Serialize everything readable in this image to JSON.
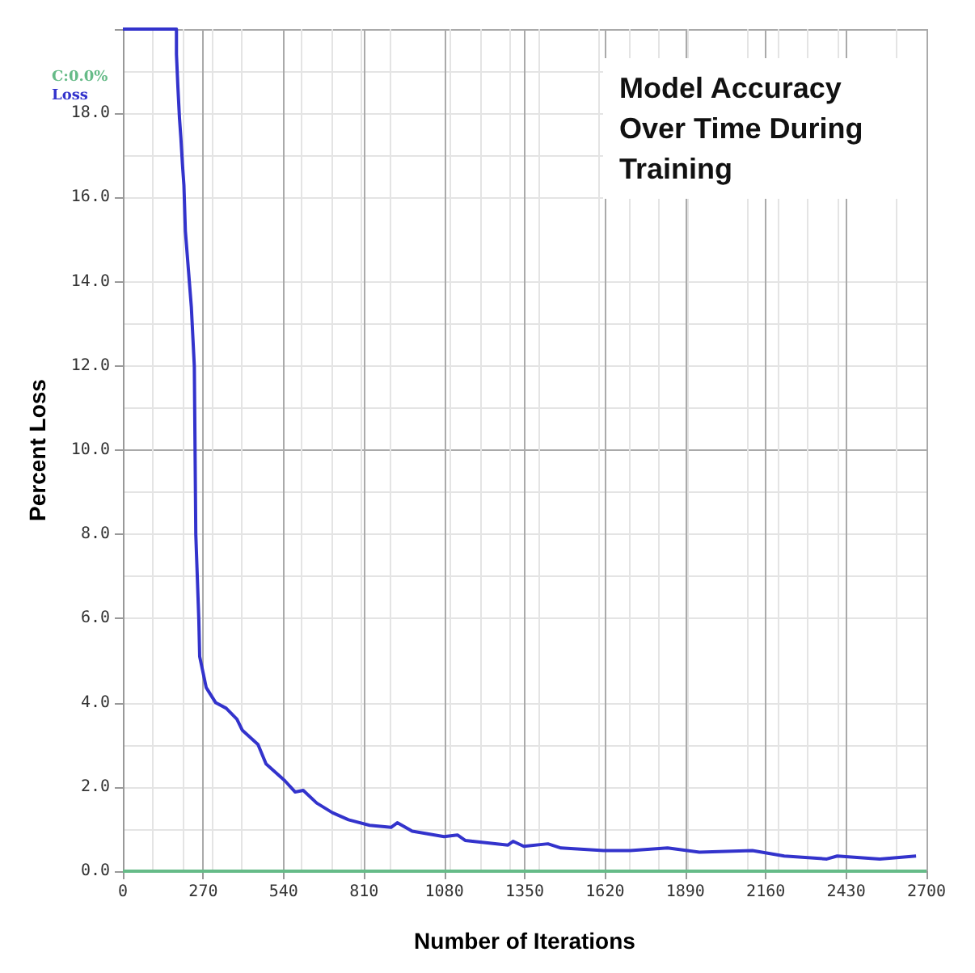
{
  "chart_data": {
    "type": "line",
    "title": "Model Accuracy Over Time During Training",
    "xlabel": "Number of Iterations",
    "ylabel": "Percent Loss",
    "xlim": [
      0,
      2700
    ],
    "xticks": [
      0,
      270,
      540,
      810,
      1080,
      1350,
      1620,
      1890,
      2160,
      2430,
      2700
    ],
    "ylim": [
      0,
      20
    ],
    "yticks": [
      {
        "value": 0,
        "label": "0.0"
      },
      {
        "value": 2,
        "label": "2.0"
      },
      {
        "value": 4,
        "label": "4.0"
      },
      {
        "value": 6,
        "label": "6.0"
      },
      {
        "value": 8,
        "label": "8.0"
      },
      {
        "value": 10,
        "label": "10.0"
      },
      {
        "value": 12,
        "label": "12.0"
      },
      {
        "value": 14,
        "label": "14.0"
      },
      {
        "value": 16,
        "label": "16.0"
      },
      {
        "value": 18,
        "label": "18.0"
      },
      {
        "value": 20,
        "label": null
      }
    ],
    "grid": true,
    "legend": "top left",
    "series": [
      {
        "name": "C:0.0%",
        "color": "#66bb88",
        "x": [
          0,
          2700
        ],
        "values": [
          0,
          0
        ]
      },
      {
        "name": "Loss",
        "color": "#3333cc",
        "x": [
          0,
          180,
          180,
          185,
          190,
          195,
          200,
          205,
          210,
          220,
          230,
          240,
          245,
          255,
          258,
          280,
          312,
          347,
          383,
          401,
          454,
          481,
          544,
          579,
          606,
          651,
          704,
          758,
          829,
          901,
          922,
          972,
          1079,
          1124,
          1150,
          1294,
          1311,
          1347,
          1428,
          1472,
          1615,
          1705,
          1830,
          1937,
          2115,
          2222,
          2365,
          2400,
          2543,
          2665
        ],
        "values": [
          20,
          20,
          19.4,
          18.6,
          17.9,
          17.4,
          16.8,
          16.3,
          15.2,
          14.3,
          13.4,
          12.0,
          8.0,
          6.0,
          5.1,
          4.36,
          4.0,
          3.87,
          3.61,
          3.35,
          3.01,
          2.55,
          2.15,
          1.88,
          1.92,
          1.62,
          1.39,
          1.22,
          1.09,
          1.04,
          1.15,
          0.95,
          0.82,
          0.86,
          0.73,
          0.62,
          0.71,
          0.59,
          0.65,
          0.55,
          0.49,
          0.49,
          0.55,
          0.45,
          0.49,
          0.36,
          0.29,
          0.36,
          0.29,
          0.36
        ]
      }
    ]
  }
}
